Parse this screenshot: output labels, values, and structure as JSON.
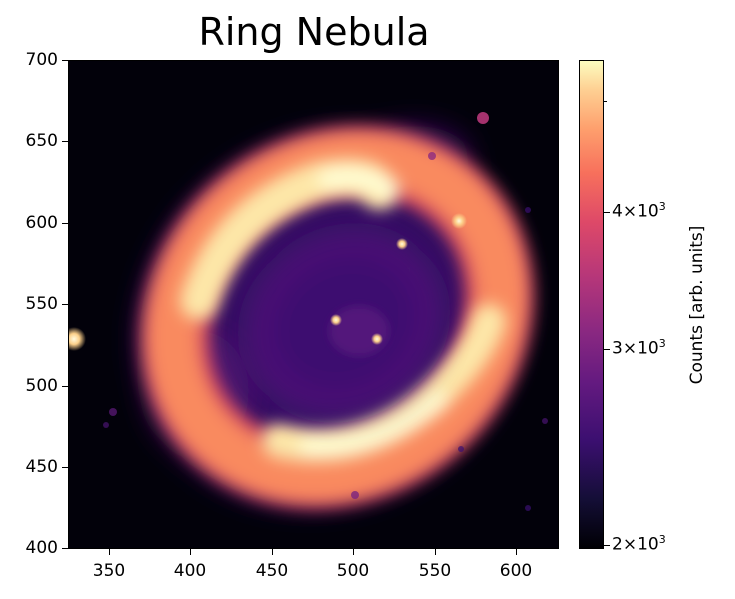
{
  "figure": {
    "title": "Ring Nebula",
    "x_axis": {
      "range": [
        325,
        625
      ],
      "ticks": [
        "350",
        "400",
        "450",
        "500",
        "550",
        "600"
      ]
    },
    "y_axis": {
      "range": [
        400,
        700
      ],
      "ticks": [
        "700",
        "650",
        "600",
        "550",
        "500",
        "450",
        "400"
      ]
    },
    "colormap": "magma",
    "background_color": "#02010a",
    "colorbar": {
      "label": "Counts [arb. units]",
      "scale": "log",
      "tick_labels": [
        {
          "mantissa": "4",
          "times": "×",
          "base": "10",
          "exp": "3"
        },
        {
          "mantissa": "3",
          "times": "×",
          "base": "10",
          "exp": "3"
        },
        {
          "mantissa": "2",
          "times": "×",
          "base": "10",
          "exp": "3"
        }
      ]
    }
  }
}
